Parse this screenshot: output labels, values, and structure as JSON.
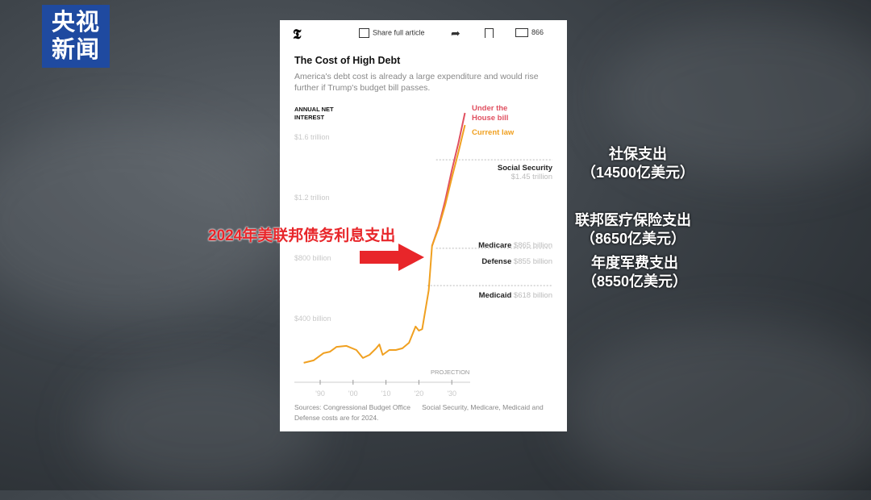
{
  "broadcaster_logo": {
    "line1": "央视",
    "line2": "新闻"
  },
  "article": {
    "toolbar": {
      "share_label": "Share full article",
      "comments_count": "866"
    },
    "title": "The Cost of High Debt",
    "subtitle": "America's debt cost is already a large expenditure and would rise further if Trump's budget bill passes.",
    "sources": "Sources: Congressional Budget Office",
    "note": "Social Security, Medicare, Medicaid and Defense costs are for 2024."
  },
  "chart_data": {
    "type": "line",
    "ylabel": "ANNUAL NET INTEREST",
    "y_tick_labels": [
      "$400 billion",
      "$800 billion",
      "$1.2 trillion",
      "$1.6 trillion"
    ],
    "y_ticks": [
      400,
      800,
      1200,
      1600
    ],
    "x_tick_labels": [
      "'90",
      "'00",
      "'10",
      "'20",
      "'30"
    ],
    "x_ticks": [
      1990,
      2000,
      2010,
      2020,
      2030
    ],
    "xlim": [
      1983,
      2036
    ],
    "ylim": [
      0,
      1800
    ],
    "projection_label": "PROJECTION",
    "series": [
      {
        "name": "Current law",
        "color": "#f0a020",
        "x": [
          1985,
          1988,
          1991,
          1993,
          1995,
          1998,
          2001,
          2003,
          2005,
          2007,
          2008,
          2009,
          2011,
          2013,
          2015,
          2017,
          2019,
          2020,
          2021,
          2023,
          2024,
          2026,
          2028,
          2030,
          2032,
          2034
        ],
        "y": [
          107,
          123,
          171,
          181,
          213,
          219,
          192,
          139,
          160,
          203,
          229,
          160,
          192,
          192,
          203,
          240,
          347,
          320,
          330,
          587,
          880,
          1000,
          1150,
          1330,
          1500,
          1680
        ]
      },
      {
        "name": "Under the House bill",
        "color": "#e05060",
        "x": [
          2024,
          2026,
          2028,
          2030,
          2032,
          2034
        ],
        "y": [
          880,
          1010,
          1180,
          1380,
          1560,
          1760
        ]
      }
    ],
    "reference_lines": [
      {
        "name": "Social Security",
        "label": "$1.45 trillion",
        "value": 1450
      },
      {
        "name": "Medicare",
        "label": "$865 billion",
        "value": 865
      },
      {
        "name": "Defense",
        "label": "$855 billion",
        "value": 855
      },
      {
        "name": "Medicaid",
        "label": "$618 billion",
        "value": 618
      }
    ]
  },
  "overlay": {
    "arrow_caption": "2024年美联邦债务利息支出",
    "social_security": {
      "title": "社保支出",
      "amount": "（14500亿美元）"
    },
    "medicare": {
      "title": "联邦医疗保险支出",
      "amount": "（8650亿美元）"
    },
    "defense": {
      "title": "年度军费支出",
      "amount": "（8550亿美元）"
    },
    "arrow_color": "#e8262a"
  }
}
